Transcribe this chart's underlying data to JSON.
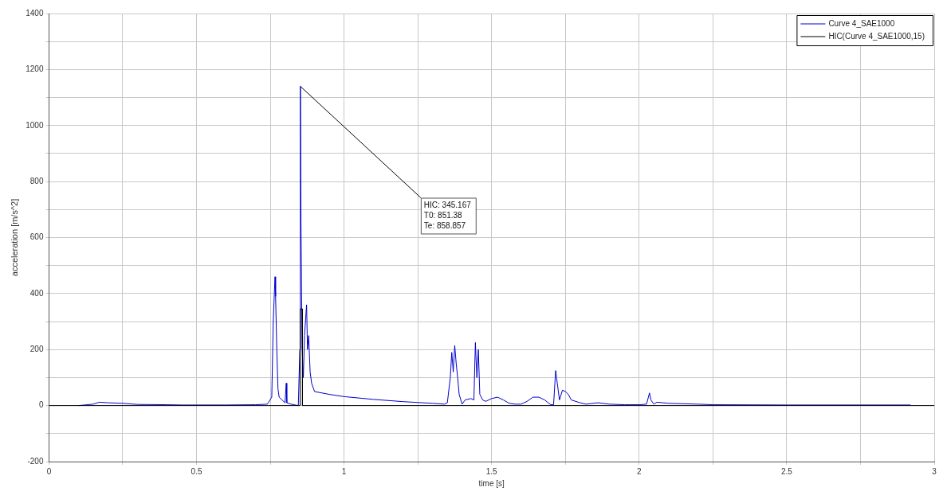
{
  "chart_data": {
    "type": "line",
    "xlabel": "time [s]",
    "ylabel": "acceleration [m/s^2]",
    "xlim": [
      0,
      3
    ],
    "xticks": [
      0,
      {
        "value": 0.25,
        "label": null
      },
      0.5,
      {
        "value": 0.75,
        "label": null
      },
      1,
      {
        "value": 1.25,
        "label": null
      },
      1.5,
      {
        "value": 1.75,
        "label": null
      },
      2,
      {
        "value": 2.25,
        "label": null
      },
      2.5,
      {
        "value": 2.75,
        "label": null
      },
      3
    ],
    "ylim": [
      -200,
      1400
    ],
    "yticks": [
      -200,
      {
        "value": -100,
        "label": null
      },
      0,
      {
        "value": 100,
        "label": null
      },
      200,
      {
        "value": 300,
        "label": null
      },
      400,
      {
        "value": 500,
        "label": null
      },
      600,
      {
        "value": 700,
        "label": null
      },
      800,
      {
        "value": 900,
        "label": null
      },
      1000,
      {
        "value": 1100,
        "label": null
      },
      1200,
      {
        "value": 1300,
        "label": null
      },
      1400
    ],
    "grid": true,
    "legend": "top right",
    "marker": "none",
    "line_style": "solid",
    "series": [
      {
        "name": "Curve 4_SAE1000",
        "color": "#0000cc",
        "x": [
          0.1,
          0.15,
          0.17,
          0.2,
          0.25,
          0.3,
          0.4,
          0.45,
          0.48,
          0.6,
          0.7,
          0.74,
          0.755,
          0.76,
          0.766,
          0.768,
          0.772,
          0.776,
          0.78,
          0.79,
          0.8,
          0.804,
          0.806,
          0.82,
          0.845,
          0.85,
          0.852,
          0.854,
          0.856,
          0.858,
          0.862,
          0.866,
          0.873,
          0.876,
          0.88,
          0.885,
          0.89,
          0.9,
          0.95,
          1.0,
          1.1,
          1.2,
          1.3,
          1.34,
          1.35,
          1.36,
          1.365,
          1.37,
          1.375,
          1.38,
          1.385,
          1.39,
          1.4,
          1.41,
          1.43,
          1.44,
          1.445,
          1.45,
          1.455,
          1.46,
          1.47,
          1.48,
          1.5,
          1.52,
          1.54,
          1.56,
          1.58,
          1.6,
          1.62,
          1.64,
          1.66,
          1.68,
          1.7,
          1.71,
          1.717,
          1.72,
          1.73,
          1.74,
          1.75,
          1.76,
          1.77,
          1.8,
          1.82,
          1.86,
          1.9,
          1.95,
          2.0,
          2.025,
          2.035,
          2.04,
          2.05,
          2.06,
          2.1,
          2.2,
          2.25,
          2.5,
          2.92
        ],
        "values": [
          0,
          5,
          12,
          10,
          8,
          4,
          3,
          2,
          2,
          2,
          3,
          5,
          30,
          300,
          460,
          390,
          200,
          60,
          30,
          20,
          10,
          80,
          10,
          5,
          0,
          200,
          1140,
          650,
          400,
          200,
          100,
          250,
          360,
          200,
          250,
          120,
          80,
          50,
          40,
          32,
          22,
          14,
          8,
          5,
          10,
          100,
          190,
          120,
          215,
          150,
          100,
          40,
          5,
          20,
          25,
          20,
          225,
          100,
          200,
          40,
          20,
          15,
          25,
          30,
          20,
          8,
          5,
          5,
          15,
          30,
          30,
          20,
          3,
          3,
          125,
          100,
          20,
          55,
          50,
          40,
          20,
          10,
          5,
          10,
          5,
          3,
          3,
          5,
          45,
          20,
          5,
          12,
          8,
          5,
          3,
          2,
          2
        ]
      },
      {
        "name": "HIC(Curve 4_SAE1000,15)",
        "color": "#000000",
        "x": [
          0,
          0.851,
          0.851,
          0.859,
          0.859,
          3
        ],
        "values": [
          0,
          0,
          345,
          345,
          0,
          0
        ]
      }
    ],
    "annotations": [
      {
        "text": "HIC: 345.167\nT0: 851.38\nTe: 858.857",
        "x": 0.852,
        "y": 1140
      }
    ]
  }
}
